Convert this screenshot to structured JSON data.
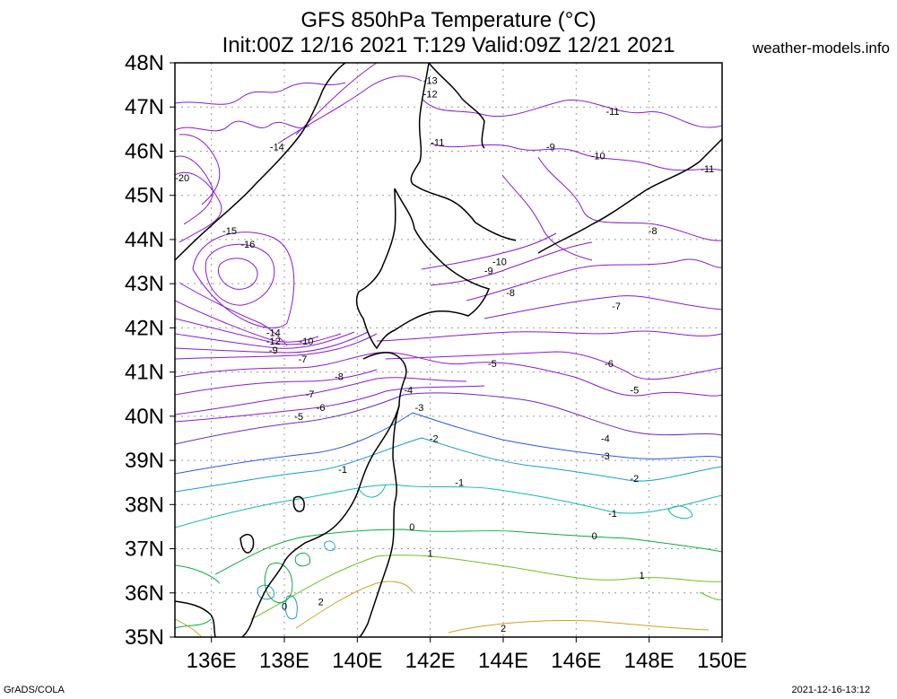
{
  "title_line1": "GFS 850hPa Temperature (°C)",
  "title_line2": "Init:00Z 12/16 2021 T:129 Valid:09Z 12/21 2021",
  "site": "weather-models.info",
  "footer_left": "GrADS/COLA",
  "footer_right": "2021-12-16-13:12",
  "chart_data": {
    "type": "contour-map",
    "lon_range": [
      135,
      150
    ],
    "lat_range": [
      35,
      48
    ],
    "x_ticks": [
      "136E",
      "138E",
      "140E",
      "142E",
      "144E",
      "146E",
      "148E",
      "150E"
    ],
    "y_ticks": [
      "35N",
      "36N",
      "37N",
      "38N",
      "39N",
      "40N",
      "41N",
      "42N",
      "43N",
      "44N",
      "45N",
      "46N",
      "47N",
      "48N"
    ],
    "grid": true,
    "contour_colors": {
      "cold": "#8a1bd0",
      "minus4": "#6a2bc0",
      "minus3": "#2a5ad8",
      "minus2": "#1a9ad0",
      "minus1": "#10b8b0",
      "zero": "#10a840",
      "plus1": "#70c020",
      "plus2": "#d0a020",
      "coast": "#000000"
    },
    "labels": [
      {
        "text": "-13",
        "lon": 142.0,
        "lat": 47.6
      },
      {
        "text": "-12",
        "lon": 142.0,
        "lat": 47.3
      },
      {
        "text": "-11",
        "lon": 147.0,
        "lat": 46.9
      },
      {
        "text": "-11",
        "lon": 142.2,
        "lat": 46.2
      },
      {
        "text": "-14",
        "lon": 137.8,
        "lat": 46.1
      },
      {
        "text": "-9",
        "lon": 145.3,
        "lat": 46.1
      },
      {
        "text": "-10",
        "lon": 146.6,
        "lat": 45.9
      },
      {
        "text": "-11",
        "lon": 149.6,
        "lat": 45.6
      },
      {
        "text": "-20",
        "lon": 135.2,
        "lat": 45.4
      },
      {
        "text": "-15",
        "lon": 136.5,
        "lat": 44.2
      },
      {
        "text": "-16",
        "lon": 137.0,
        "lat": 43.9
      },
      {
        "text": "-8",
        "lon": 148.1,
        "lat": 44.2
      },
      {
        "text": "-10",
        "lon": 143.9,
        "lat": 43.5
      },
      {
        "text": "-9",
        "lon": 143.6,
        "lat": 43.3
      },
      {
        "text": "-8",
        "lon": 144.2,
        "lat": 42.8
      },
      {
        "text": "-7",
        "lon": 147.1,
        "lat": 42.5
      },
      {
        "text": "-14",
        "lon": 137.7,
        "lat": 41.9
      },
      {
        "text": "-12",
        "lon": 137.7,
        "lat": 41.7
      },
      {
        "text": "-10",
        "lon": 138.6,
        "lat": 41.7
      },
      {
        "text": "-9",
        "lon": 137.7,
        "lat": 41.5
      },
      {
        "text": "-7",
        "lon": 138.5,
        "lat": 41.3
      },
      {
        "text": "-6",
        "lon": 146.9,
        "lat": 41.2
      },
      {
        "text": "-5",
        "lon": 143.7,
        "lat": 41.2
      },
      {
        "text": "-8",
        "lon": 139.5,
        "lat": 40.9
      },
      {
        "text": "-5",
        "lon": 147.6,
        "lat": 40.6
      },
      {
        "text": "-4",
        "lon": 141.4,
        "lat": 40.6
      },
      {
        "text": "-7",
        "lon": 138.7,
        "lat": 40.5
      },
      {
        "text": "-6",
        "lon": 139.0,
        "lat": 40.2
      },
      {
        "text": "-3",
        "lon": 141.7,
        "lat": 40.2
      },
      {
        "text": "-5",
        "lon": 138.4,
        "lat": 40.0
      },
      {
        "text": "-2",
        "lon": 142.1,
        "lat": 39.5
      },
      {
        "text": "-4",
        "lon": 146.8,
        "lat": 39.5
      },
      {
        "text": "-3",
        "lon": 146.8,
        "lat": 39.1
      },
      {
        "text": "-1",
        "lon": 139.6,
        "lat": 38.8
      },
      {
        "text": "-2",
        "lon": 147.6,
        "lat": 38.6
      },
      {
        "text": "-1",
        "lon": 142.8,
        "lat": 38.5
      },
      {
        "text": "-1",
        "lon": 147.0,
        "lat": 37.8
      },
      {
        "text": "0",
        "lon": 141.5,
        "lat": 37.5
      },
      {
        "text": "0",
        "lon": 146.5,
        "lat": 37.3
      },
      {
        "text": "1",
        "lon": 142.0,
        "lat": 36.9
      },
      {
        "text": "1",
        "lon": 147.8,
        "lat": 36.4
      },
      {
        "text": "2",
        "lon": 139.0,
        "lat": 35.8
      },
      {
        "text": "0",
        "lon": 138.0,
        "lat": 35.7
      },
      {
        "text": "2",
        "lon": 144.0,
        "lat": 35.2
      }
    ]
  }
}
